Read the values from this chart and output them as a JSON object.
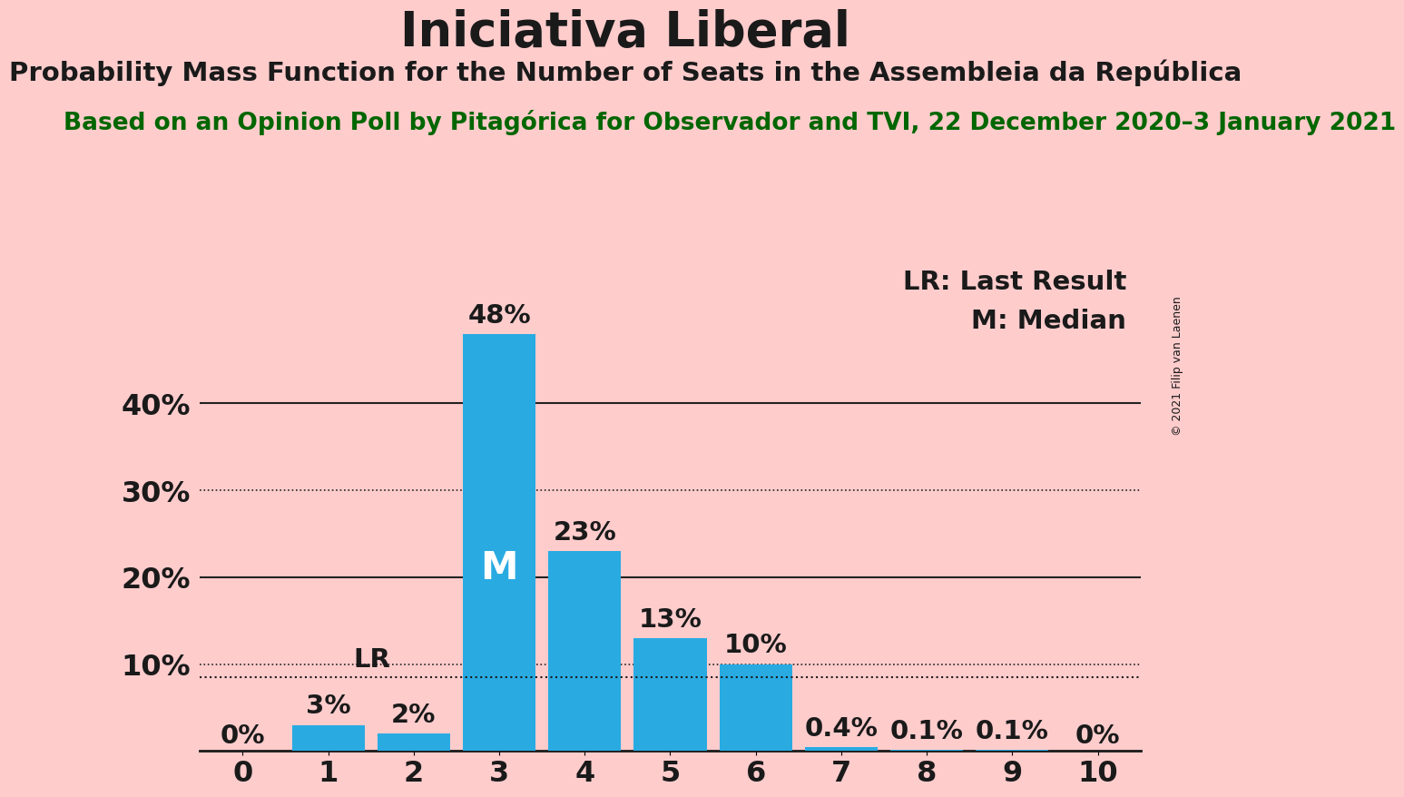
{
  "title": "Iniciativa Liberal",
  "subtitle": "Probability Mass Function for the Number of Seats in the Assembleia da República",
  "source_line": "Based on an Opinion Poll by Pitagórica for Observador and TVI, 22 December 2020–3 January 2021",
  "copyright": "© 2021 Filip van Laenen",
  "categories": [
    0,
    1,
    2,
    3,
    4,
    5,
    6,
    7,
    8,
    9,
    10
  ],
  "values": [
    0.0,
    3.0,
    2.0,
    48.0,
    23.0,
    13.0,
    10.0,
    0.4,
    0.1,
    0.1,
    0.0
  ],
  "labels": [
    "0%",
    "3%",
    "2%",
    "48%",
    "23%",
    "13%",
    "10%",
    "0.4%",
    "0.1%",
    "0.1%",
    "0%"
  ],
  "bar_color": "#29ABE2",
  "bg_color": "#FFCCCC",
  "title_color": "#1A1A1A",
  "subtitle_color": "#1A1A1A",
  "source_color": "#006600",
  "median_seat": 3,
  "last_result_seat": 1,
  "lr_level": 8.5,
  "yticks": [
    0,
    10,
    20,
    30,
    40
  ],
  "ytick_labels": [
    "",
    "10%",
    "20%",
    "30%",
    "40%"
  ],
  "ylim": [
    0,
    56
  ],
  "legend_lr": "LR: Last Result",
  "legend_m": "M: Median",
  "title_fontsize": 38,
  "subtitle_fontsize": 21,
  "source_fontsize": 19,
  "bar_label_fontsize": 21,
  "axis_label_fontsize": 23,
  "legend_fontsize": 21,
  "copyright_fontsize": 9,
  "median_label_fontsize": 30
}
